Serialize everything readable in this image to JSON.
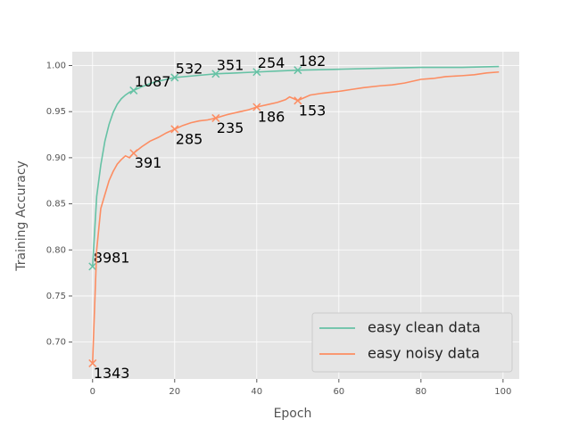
{
  "chart_data": {
    "type": "line",
    "xlabel": "Epoch",
    "ylabel": "Training Accuracy",
    "xlim": [
      -4.95,
      103.95
    ],
    "ylim": [
      0.66,
      1.015
    ],
    "xticks": [
      0,
      20,
      40,
      60,
      80,
      100
    ],
    "yticks": [
      {
        "value": 0.7,
        "label": "0.70"
      },
      {
        "value": 0.75,
        "label": "0.75"
      },
      {
        "value": 0.8,
        "label": "0.80"
      },
      {
        "value": 0.85,
        "label": "0.85"
      },
      {
        "value": 0.9,
        "label": "0.90"
      },
      {
        "value": 0.95,
        "label": "0.95"
      },
      {
        "value": 1.0,
        "label": "1.00"
      }
    ],
    "grid": true,
    "legend": "lower right",
    "series": [
      {
        "name": "easy clean data",
        "color": "#66c2a5",
        "x": [
          0,
          1,
          2,
          3,
          4,
          5,
          6,
          7,
          8,
          9,
          10,
          12,
          15,
          18,
          20,
          25,
          30,
          35,
          40,
          45,
          50,
          60,
          70,
          80,
          90,
          99
        ],
        "values": [
          0.782,
          0.858,
          0.892,
          0.918,
          0.936,
          0.949,
          0.958,
          0.964,
          0.968,
          0.971,
          0.973,
          0.977,
          0.982,
          0.985,
          0.987,
          0.989,
          0.991,
          0.992,
          0.993,
          0.994,
          0.995,
          0.996,
          0.997,
          0.998,
          0.998,
          0.999
        ],
        "markers": {
          "x": [
            0,
            10,
            20,
            30,
            40,
            50
          ],
          "values": [
            0.782,
            0.973,
            0.987,
            0.991,
            0.993,
            0.995
          ],
          "labels": [
            8981,
            1087,
            532,
            351,
            254,
            182
          ]
        }
      },
      {
        "name": "easy noisy data",
        "color": "#fc8d62",
        "x": [
          0,
          1,
          2,
          3,
          4,
          5,
          6,
          7,
          8,
          9,
          10,
          12,
          14,
          16,
          18,
          20,
          22,
          24,
          26,
          28,
          30,
          33,
          36,
          38,
          40,
          43,
          45,
          47,
          48,
          50,
          53,
          56,
          60,
          63,
          66,
          70,
          73,
          76,
          80,
          83,
          86,
          90,
          93,
          96,
          99
        ],
        "values": [
          0.677,
          0.8,
          0.845,
          0.86,
          0.875,
          0.885,
          0.893,
          0.898,
          0.902,
          0.9,
          0.905,
          0.912,
          0.918,
          0.922,
          0.927,
          0.931,
          0.935,
          0.938,
          0.94,
          0.941,
          0.943,
          0.947,
          0.95,
          0.952,
          0.955,
          0.958,
          0.96,
          0.963,
          0.966,
          0.962,
          0.968,
          0.97,
          0.972,
          0.974,
          0.976,
          0.978,
          0.979,
          0.981,
          0.985,
          0.986,
          0.988,
          0.989,
          0.99,
          0.992,
          0.993
        ],
        "markers": {
          "x": [
            0,
            10,
            20,
            30,
            40,
            50
          ],
          "values": [
            0.677,
            0.905,
            0.931,
            0.943,
            0.955,
            0.962
          ],
          "labels": [
            1343,
            391,
            285,
            235,
            186,
            153
          ]
        }
      }
    ]
  }
}
